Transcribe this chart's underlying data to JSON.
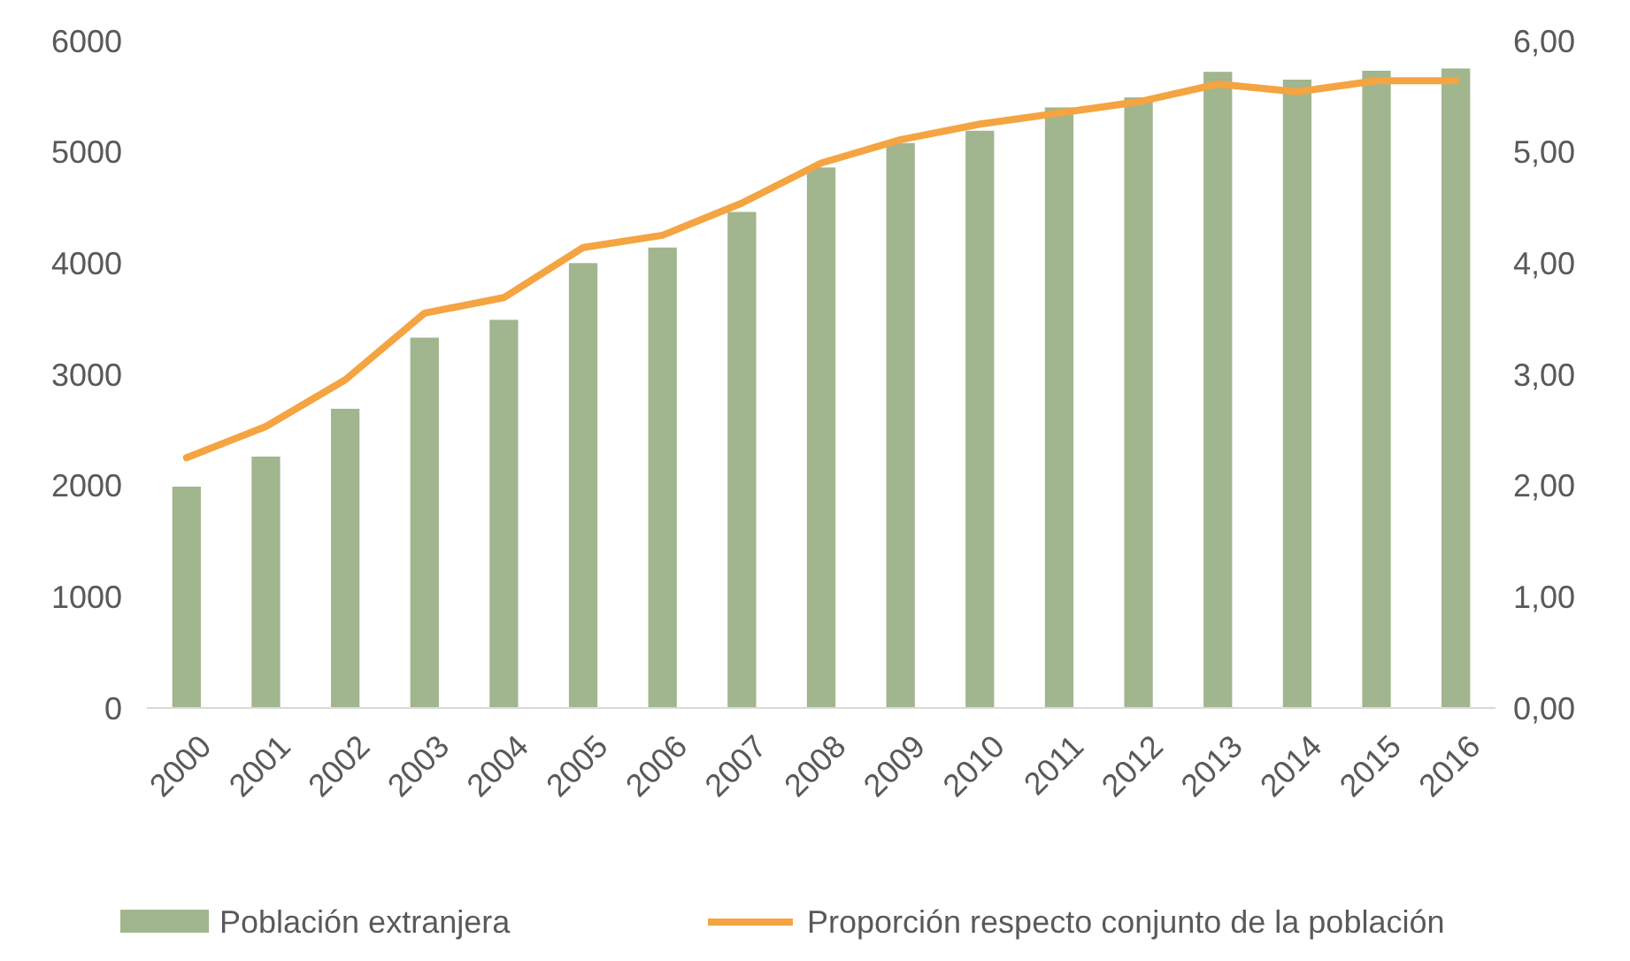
{
  "chart_data": {
    "type": "bar",
    "categories": [
      "2000",
      "2001",
      "2002",
      "2003",
      "2004",
      "2005",
      "2006",
      "2007",
      "2008",
      "2009",
      "2010",
      "2011",
      "2012",
      "2013",
      "2014",
      "2015",
      "2016"
    ],
    "series": [
      {
        "name": "Población extranjera",
        "color": "#a1b58e",
        "values": [
          1990,
          2260,
          2690,
          3330,
          3490,
          4000,
          4140,
          4460,
          4860,
          5080,
          5190,
          5400,
          5490,
          5720,
          5650,
          5730,
          5750
        ]
      },
      {
        "name": "Proporción respecto conjunto de la población",
        "type": "line",
        "axis": "y2",
        "color": "#f4a441",
        "values": [
          2.25,
          2.53,
          2.95,
          3.55,
          3.69,
          4.14,
          4.25,
          4.54,
          4.9,
          5.11,
          5.25,
          5.35,
          5.45,
          5.61,
          5.54,
          5.64,
          5.64
        ]
      }
    ],
    "ylim": [
      0,
      6000
    ],
    "yticks": [
      0,
      1000,
      2000,
      3000,
      4000,
      5000,
      6000
    ],
    "y2lim": [
      0,
      6
    ],
    "y2ticks": [
      {
        "value": 0,
        "label": "0,00"
      },
      {
        "value": 1,
        "label": "1,00"
      },
      {
        "value": 2,
        "label": "2,00"
      },
      {
        "value": 3,
        "label": "3,00"
      },
      {
        "value": 4,
        "label": "4,00"
      },
      {
        "value": 5,
        "label": "5,00"
      },
      {
        "value": 6,
        "label": "6,00"
      }
    ],
    "legend": "bottom",
    "marker": "none",
    "line_style": "solid"
  }
}
